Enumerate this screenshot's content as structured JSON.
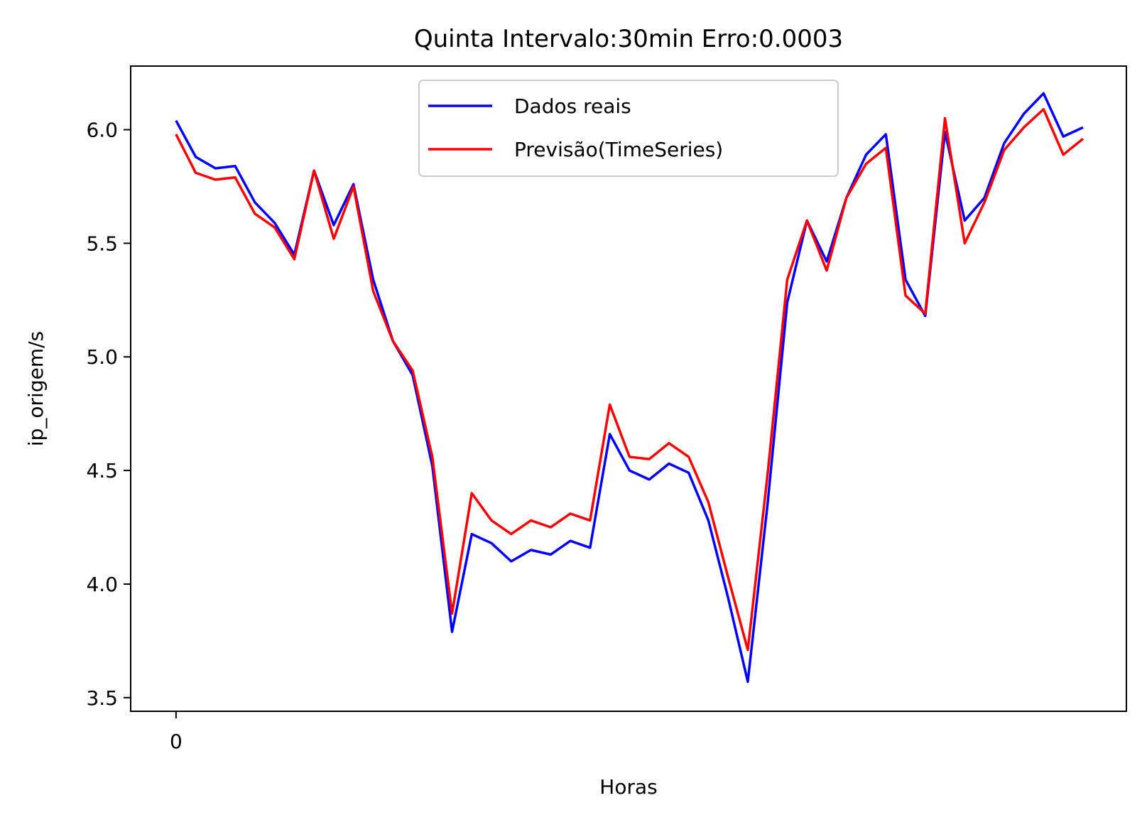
{
  "chart_data": {
    "type": "line",
    "title": "Quinta Intervalo:30min Erro:0.0003",
    "xlabel": "Horas",
    "ylabel": "ip_origem/s",
    "x": [
      0,
      1,
      2,
      3,
      4,
      5,
      6,
      7,
      8,
      9,
      10,
      11,
      12,
      13,
      14,
      15,
      16,
      17,
      18,
      19,
      20,
      21,
      22,
      23,
      24,
      25,
      26,
      27,
      28,
      29,
      30,
      31,
      32,
      33,
      34,
      35,
      36,
      37,
      38,
      39,
      40,
      41,
      42,
      43,
      44,
      45,
      46
    ],
    "xticks": [
      0
    ],
    "xtick_labels": [
      "0"
    ],
    "xlim": [
      -2.3,
      48.2
    ],
    "ylim": [
      3.44,
      6.28
    ],
    "yticks": [
      3.5,
      4.0,
      4.5,
      5.0,
      5.5,
      6.0
    ],
    "ytick_labels": [
      "3.5",
      "4.0",
      "4.5",
      "5.0",
      "5.5",
      "6.0"
    ],
    "grid": false,
    "legend_position": "top-center",
    "series": [
      {
        "name": "Dados reais",
        "color": "#0000ff",
        "values": [
          6.04,
          5.88,
          5.83,
          5.84,
          5.68,
          5.59,
          5.45,
          5.82,
          5.58,
          5.76,
          5.34,
          5.07,
          4.92,
          4.52,
          3.79,
          4.22,
          4.18,
          4.1,
          4.15,
          4.13,
          4.19,
          4.16,
          4.66,
          4.5,
          4.46,
          4.53,
          4.49,
          4.28,
          3.94,
          3.57,
          4.35,
          5.24,
          5.6,
          5.42,
          5.7,
          5.89,
          5.98,
          5.34,
          5.18,
          5.99,
          5.6,
          5.7,
          5.94,
          6.07,
          6.16,
          5.97,
          6.01
        ]
      },
      {
        "name": "Previsão(TimeSeries)",
        "color": "#ff0000",
        "values": [
          5.98,
          5.81,
          5.78,
          5.79,
          5.63,
          5.57,
          5.43,
          5.82,
          5.52,
          5.75,
          5.29,
          5.07,
          4.94,
          4.56,
          3.87,
          4.4,
          4.28,
          4.22,
          4.28,
          4.25,
          4.31,
          4.28,
          4.79,
          4.56,
          4.55,
          4.62,
          4.56,
          4.36,
          4.03,
          3.71,
          4.48,
          5.34,
          5.6,
          5.38,
          5.7,
          5.85,
          5.92,
          5.27,
          5.19,
          6.05,
          5.5,
          5.68,
          5.91,
          6.01,
          6.09,
          5.89,
          5.96
        ]
      }
    ]
  }
}
